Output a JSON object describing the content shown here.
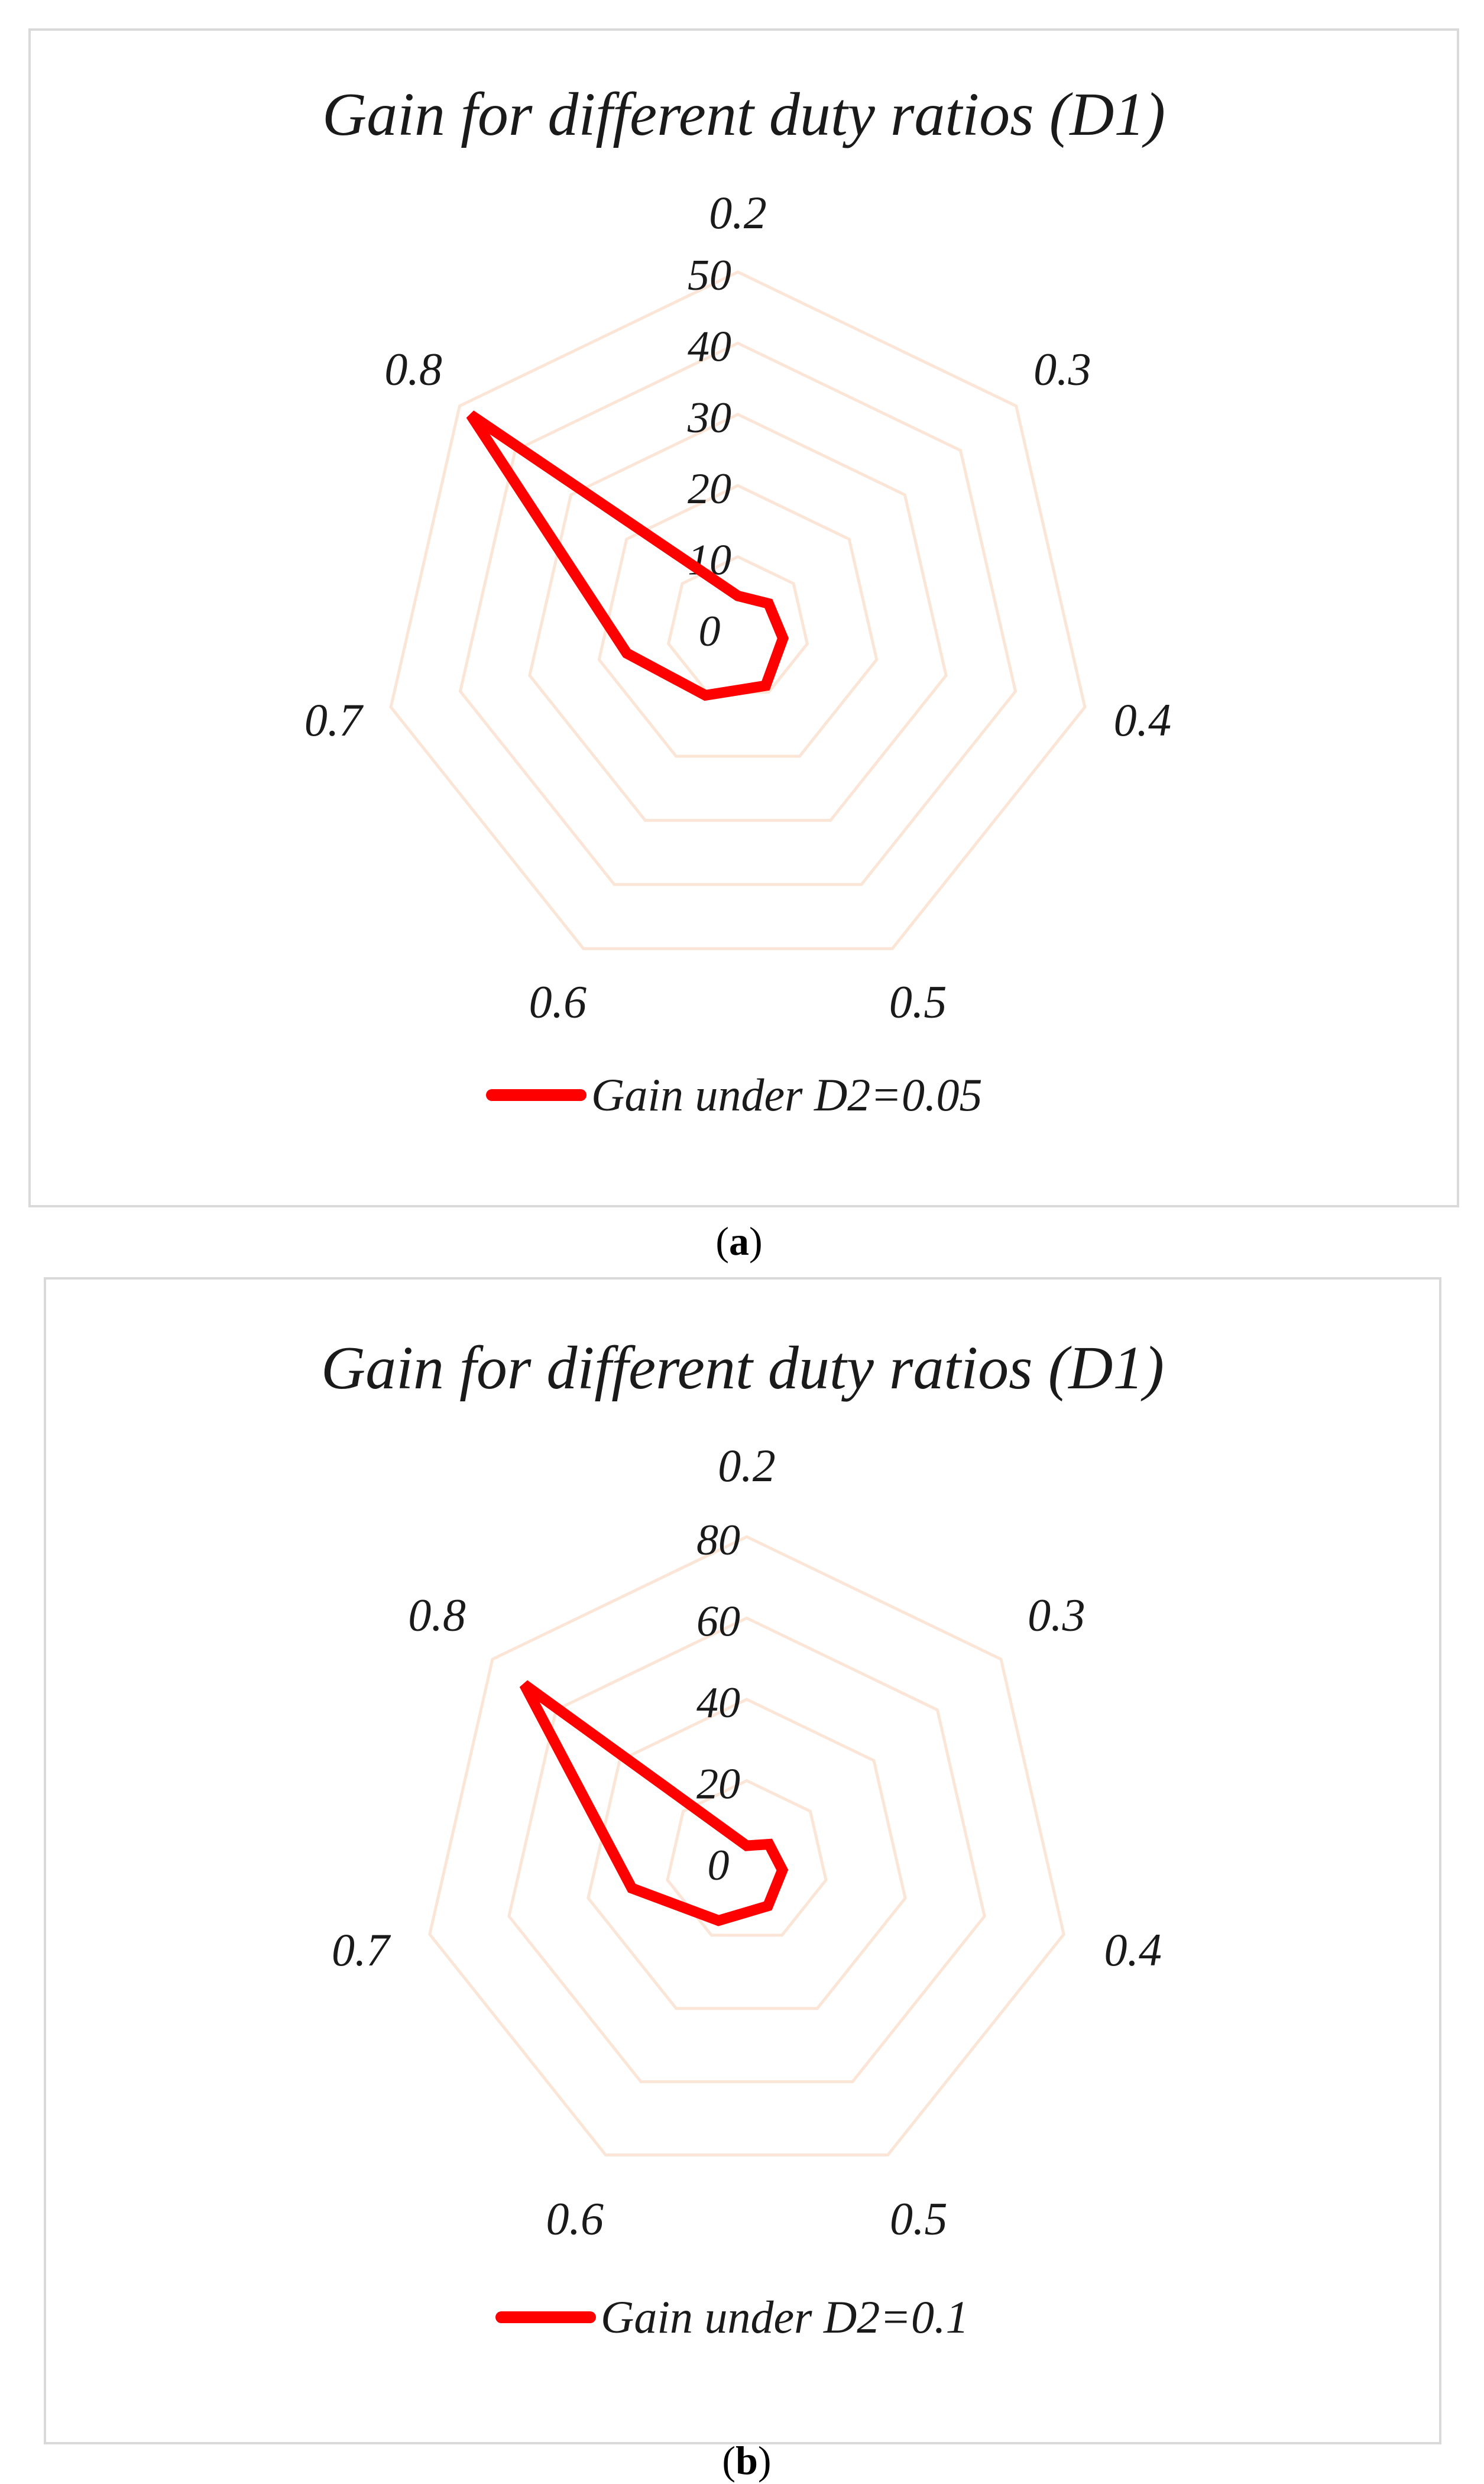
{
  "chart_data": [
    {
      "type": "radar",
      "panel_label": "a",
      "title": "Gain for different duty ratios (D1)",
      "categories": [
        "0.2",
        "0.3",
        "0.4",
        "0.5",
        "0.6",
        "0.7",
        "0.8"
      ],
      "radial_ticks": [
        "0",
        "10",
        "20",
        "30",
        "40",
        "50"
      ],
      "rmax": 50,
      "grid": true,
      "legend_position": "bottom",
      "series": [
        {
          "name": "Gain under D2=0.05",
          "color": "#ff0000",
          "values": [
            4.5,
            5.5,
            6.5,
            9,
            10.5,
            16,
            48
          ]
        }
      ]
    },
    {
      "type": "radar",
      "panel_label": "b",
      "title": "Gain for different duty ratios (D1)",
      "categories": [
        "0.2",
        "0.3",
        "0.4",
        "0.5",
        "0.6",
        "0.7",
        "0.8"
      ],
      "radial_ticks": [
        "0",
        "20",
        "40",
        "60",
        "80"
      ],
      "rmax": 80,
      "grid": true,
      "legend_position": "bottom",
      "series": [
        {
          "name": "Gain under D2=0.1",
          "color": "#ff0000",
          "values": [
            4,
            7,
            9,
            12,
            16,
            29,
            70
          ]
        }
      ]
    }
  ],
  "captions": {
    "open": "(",
    "close": ")"
  },
  "colors": {
    "grid": "#fbe5d6",
    "series": "#ff0000"
  }
}
